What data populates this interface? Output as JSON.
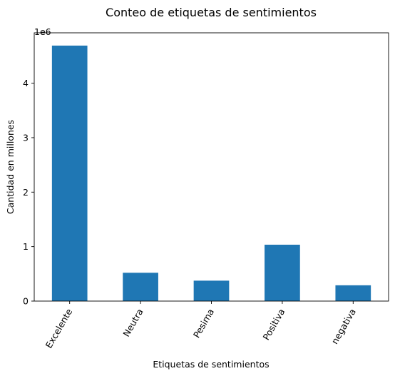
{
  "chart_data": {
    "type": "bar",
    "title": "Conteo de etiquetas de sentimientos",
    "xlabel": "Etiquetas de sentimientos",
    "ylabel": "Cantidad en millones",
    "y_offset_label": "1e6",
    "categories": [
      "Excelente",
      "Neutra",
      "Pesima",
      "Positiva",
      "negativa"
    ],
    "values": [
      4690000,
      520000,
      375000,
      1035000,
      290000
    ],
    "ylim": [
      0,
      4924500
    ],
    "y_ticks": [
      0,
      1000000,
      2000000,
      3000000,
      4000000
    ],
    "y_tick_labels": [
      "0",
      "1",
      "2",
      "3",
      "4"
    ],
    "x_tick_rotation": 60,
    "bar_color": "#1f77b4",
    "grid": false,
    "legend": "none"
  }
}
